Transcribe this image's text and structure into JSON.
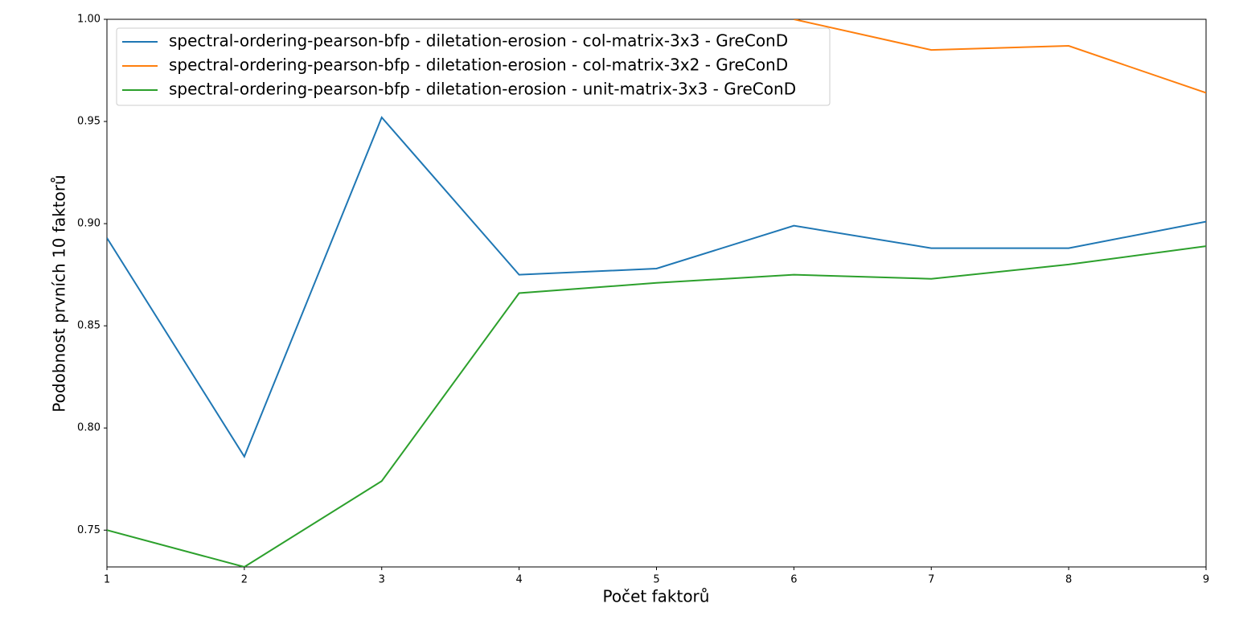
{
  "chart_data": {
    "type": "line",
    "xlabel": "Počet faktorů",
    "ylabel": "Podobnost prvních 10 faktorů",
    "x": [
      1,
      2,
      3,
      4,
      5,
      6,
      7,
      8,
      9
    ],
    "series": [
      {
        "name": "spectral-ordering-pearson-bfp - diletation-erosion - col-matrix-3x3 - GreConD",
        "color": "#1f77b4",
        "values": [
          0.893,
          0.786,
          0.952,
          0.875,
          0.878,
          0.899,
          0.888,
          0.888,
          0.901
        ]
      },
      {
        "name": "spectral-ordering-pearson-bfp - diletation-erosion - col-matrix-3x2 - GreConD",
        "color": "#ff7f0e",
        "values": [
          null,
          null,
          null,
          null,
          null,
          1.0,
          0.985,
          0.987,
          0.964
        ]
      },
      {
        "name": "spectral-ordering-pearson-bfp - diletation-erosion - unit-matrix-3x3 - GreConD",
        "color": "#2ca02c",
        "values": [
          0.75,
          0.732,
          0.774,
          0.866,
          0.871,
          0.875,
          0.873,
          0.88,
          0.889
        ]
      }
    ],
    "xlim": [
      1,
      9
    ],
    "ylim": [
      0.732,
      1.0
    ],
    "xticks": [
      1,
      2,
      3,
      4,
      5,
      6,
      7,
      8,
      9
    ],
    "yticks": [
      0.75,
      {
        "value": 0.8,
        "label": "0.80"
      },
      0.85,
      {
        "value": 0.9,
        "label": "0.90"
      },
      0.95,
      {
        "value": 1.0,
        "label": "1.00"
      }
    ],
    "grid": false,
    "legend": "upper left"
  }
}
